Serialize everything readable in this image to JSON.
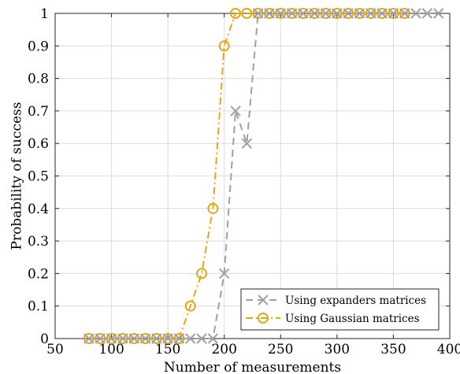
{
  "chart_data": {
    "type": "line",
    "xlabel": "Number of measurements",
    "ylabel": "Probability of success",
    "xlim": [
      50,
      400
    ],
    "ylim": [
      0,
      1
    ],
    "xticks": [
      50,
      100,
      150,
      200,
      250,
      300,
      350,
      400
    ],
    "yticks": [
      0,
      0.1,
      0.2,
      0.3,
      0.4,
      0.5,
      0.6,
      0.7,
      0.8,
      0.9,
      1
    ],
    "grid": true,
    "legend_position": "bottom-right",
    "series": [
      {
        "name": "Using expanders matrices",
        "color": "#a0a0a0",
        "marker": "x",
        "line_style": "dashed",
        "x": [
          80,
          90,
          100,
          110,
          120,
          130,
          140,
          150,
          160,
          170,
          180,
          190,
          200,
          210,
          220,
          230,
          240,
          250,
          260,
          270,
          280,
          290,
          300,
          310,
          320,
          330,
          340,
          350,
          360,
          370,
          380,
          390
        ],
        "y": [
          0,
          0,
          0,
          0,
          0,
          0,
          0,
          0,
          0,
          0,
          0,
          0,
          0.2,
          0.7,
          0.6,
          1,
          1,
          1,
          1,
          1,
          1,
          1,
          1,
          1,
          1,
          1,
          1,
          1,
          1,
          1,
          1,
          1
        ]
      },
      {
        "name": "Using Gaussian matrices",
        "color": "#e3a816",
        "marker": "o",
        "line_style": "dashdot",
        "x": [
          80,
          90,
          100,
          110,
          120,
          130,
          140,
          150,
          160,
          170,
          180,
          190,
          200,
          210,
          220,
          230,
          240,
          250,
          260,
          270,
          280,
          290,
          300,
          310,
          320,
          330,
          340,
          350,
          360
        ],
        "y": [
          0,
          0,
          0,
          0,
          0,
          0,
          0,
          0,
          0,
          0.1,
          0.2,
          0.4,
          0.9,
          1,
          1,
          1,
          1,
          1,
          1,
          1,
          1,
          1,
          1,
          1,
          1,
          1,
          1,
          1,
          1
        ]
      }
    ]
  }
}
